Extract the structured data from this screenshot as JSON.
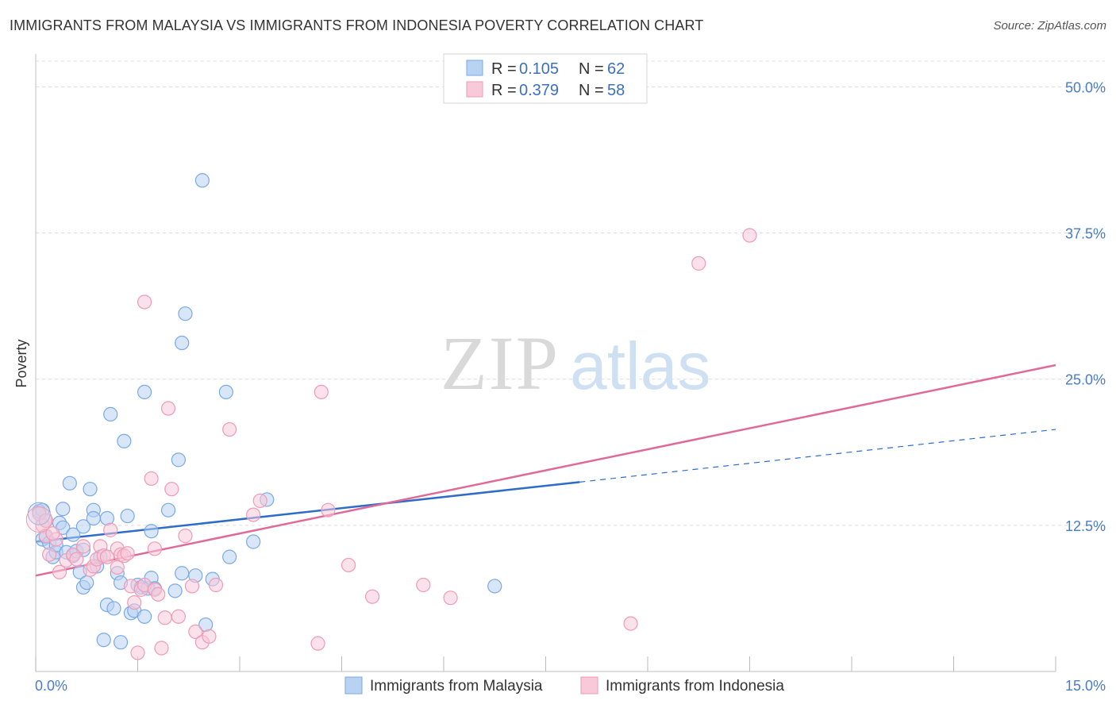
{
  "chart_data": {
    "type": "scatter",
    "title": "IMMIGRANTS FROM MALAYSIA VS IMMIGRANTS FROM INDONESIA POVERTY CORRELATION CHART",
    "source": "Source: ZipAtlas.com",
    "ylabel": "Poverty",
    "xlim": [
      0,
      15
    ],
    "ylim": [
      0,
      52.2
    ],
    "x_tick_labels": [
      {
        "value": 0,
        "label": "0.0%"
      },
      {
        "value": 15,
        "label": "15.0%"
      }
    ],
    "y_tick_labels": [
      {
        "value": 12.5,
        "label": "12.5%"
      },
      {
        "value": 25,
        "label": "25.0%"
      },
      {
        "value": 37.5,
        "label": "37.5%"
      },
      {
        "value": 50,
        "label": "50.0%"
      }
    ],
    "watermark": {
      "zip": "ZIP",
      "atlas": "atlas"
    },
    "legend": [
      {
        "r_label": "R =",
        "r_value": "0.105",
        "n_label": "N =",
        "n_value": "62"
      },
      {
        "r_label": "R =",
        "r_value": "0.379",
        "n_label": "N =",
        "n_value": "58"
      }
    ],
    "series": [
      {
        "name": "Immigrants from Malaysia",
        "color": "#7aaae6",
        "fill": "#b8d2f3",
        "line_color": "#2d6cc8",
        "trend": {
          "x0": 0,
          "y0": 11.1,
          "x1": 8.0,
          "y1": 16.2,
          "dash_to_x": 15,
          "dash_to_y": 20.7
        },
        "points": [
          [
            0.05,
            13.7
          ],
          [
            0.1,
            13.8
          ],
          [
            0.1,
            11.3
          ],
          [
            0.15,
            11.5
          ],
          [
            0.2,
            11.0
          ],
          [
            0.25,
            9.8
          ],
          [
            0.3,
            10.2
          ],
          [
            0.3,
            10.8
          ],
          [
            0.35,
            12.7
          ],
          [
            0.4,
            13.9
          ],
          [
            0.4,
            12.3
          ],
          [
            0.45,
            10.2
          ],
          [
            0.5,
            16.1
          ],
          [
            0.55,
            11.7
          ],
          [
            0.55,
            9.9
          ],
          [
            0.6,
            10.3
          ],
          [
            0.65,
            8.5
          ],
          [
            0.7,
            12.4
          ],
          [
            0.7,
            10.4
          ],
          [
            0.7,
            7.2
          ],
          [
            0.75,
            7.6
          ],
          [
            0.8,
            15.6
          ],
          [
            0.85,
            13.8
          ],
          [
            0.85,
            13.1
          ],
          [
            0.9,
            9.0
          ],
          [
            0.95,
            9.8
          ],
          [
            1.0,
            2.7
          ],
          [
            1.05,
            5.7
          ],
          [
            1.05,
            13.1
          ],
          [
            1.1,
            22.0
          ],
          [
            1.15,
            5.4
          ],
          [
            1.2,
            8.4
          ],
          [
            1.25,
            7.6
          ],
          [
            1.25,
            2.5
          ],
          [
            1.3,
            19.7
          ],
          [
            1.35,
            13.3
          ],
          [
            1.4,
            5.0
          ],
          [
            1.45,
            5.2
          ],
          [
            1.5,
            7.4
          ],
          [
            1.55,
            7.2
          ],
          [
            1.6,
            4.7
          ],
          [
            1.6,
            23.9
          ],
          [
            1.65,
            7.1
          ],
          [
            1.7,
            8.0
          ],
          [
            1.7,
            12.0
          ],
          [
            1.75,
            7.1
          ],
          [
            1.95,
            13.8
          ],
          [
            2.05,
            6.9
          ],
          [
            2.1,
            18.1
          ],
          [
            2.15,
            28.1
          ],
          [
            2.15,
            8.4
          ],
          [
            2.2,
            30.6
          ],
          [
            2.35,
            8.2
          ],
          [
            2.45,
            42.0
          ],
          [
            2.5,
            4.0
          ],
          [
            2.6,
            7.9
          ],
          [
            2.8,
            23.9
          ],
          [
            2.85,
            9.8
          ],
          [
            3.2,
            11.1
          ],
          [
            3.4,
            14.7
          ],
          [
            6.75,
            7.3
          ],
          [
            0.15,
            12.9
          ]
        ]
      },
      {
        "name": "Immigrants from Indonesia",
        "color": "#ee9bb6",
        "fill": "#f8c9d8",
        "line_color": "#e06a97",
        "trend": {
          "x0": 0,
          "y0": 8.2,
          "x1": 15,
          "y1": 26.2
        },
        "points": [
          [
            0.05,
            13.5
          ],
          [
            0.1,
            12.5
          ],
          [
            0.15,
            11.6
          ],
          [
            0.2,
            10.0
          ],
          [
            0.3,
            11.3
          ],
          [
            0.35,
            8.5
          ],
          [
            0.45,
            9.5
          ],
          [
            0.55,
            10.0
          ],
          [
            0.6,
            9.6
          ],
          [
            0.7,
            10.7
          ],
          [
            0.8,
            8.7
          ],
          [
            0.85,
            9.0
          ],
          [
            0.9,
            9.6
          ],
          [
            0.95,
            10.7
          ],
          [
            1.0,
            9.9
          ],
          [
            1.05,
            9.8
          ],
          [
            1.1,
            12.1
          ],
          [
            1.2,
            8.9
          ],
          [
            1.2,
            10.5
          ],
          [
            1.25,
            10.0
          ],
          [
            1.3,
            9.9
          ],
          [
            1.35,
            10.1
          ],
          [
            1.4,
            7.3
          ],
          [
            1.45,
            5.9
          ],
          [
            1.5,
            1.6
          ],
          [
            1.55,
            7.0
          ],
          [
            1.6,
            7.4
          ],
          [
            1.6,
            31.6
          ],
          [
            1.7,
            16.5
          ],
          [
            1.75,
            10.5
          ],
          [
            1.75,
            7.0
          ],
          [
            1.8,
            6.6
          ],
          [
            1.85,
            2.0
          ],
          [
            1.9,
            4.6
          ],
          [
            1.95,
            22.5
          ],
          [
            2.0,
            15.6
          ],
          [
            2.1,
            4.7
          ],
          [
            2.2,
            11.6
          ],
          [
            2.3,
            7.3
          ],
          [
            2.35,
            3.4
          ],
          [
            2.45,
            2.5
          ],
          [
            2.55,
            3.0
          ],
          [
            2.65,
            7.4
          ],
          [
            2.85,
            20.7
          ],
          [
            3.2,
            13.4
          ],
          [
            3.3,
            14.6
          ],
          [
            4.15,
            2.4
          ],
          [
            4.2,
            23.9
          ],
          [
            4.3,
            13.8
          ],
          [
            4.6,
            9.1
          ],
          [
            4.95,
            6.4
          ],
          [
            5.7,
            7.4
          ],
          [
            6.1,
            6.3
          ],
          [
            8.75,
            4.1
          ],
          [
            9.75,
            34.9
          ],
          [
            10.5,
            37.3
          ],
          [
            0.15,
            12.9
          ],
          [
            0.25,
            11.8
          ]
        ]
      }
    ]
  }
}
